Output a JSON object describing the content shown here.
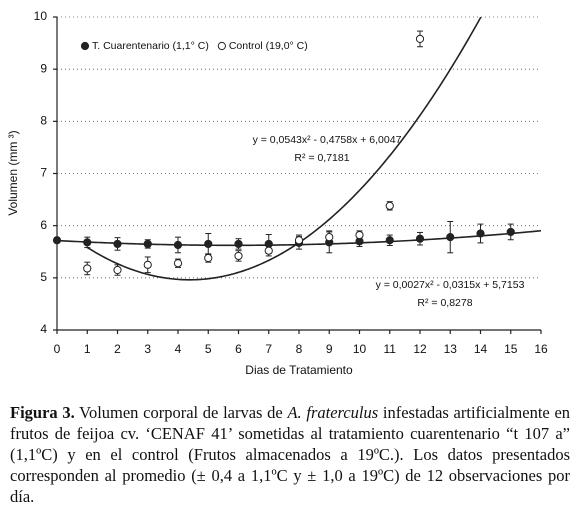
{
  "chart_data": {
    "type": "scatter",
    "y_label": "Volumen (mm ³)",
    "x_label": "Dias de Tratamiento",
    "xlim": [
      0,
      16
    ],
    "xticks": [
      0,
      1,
      2,
      3,
      4,
      5,
      6,
      7,
      8,
      9,
      10,
      11,
      12,
      13,
      14,
      15,
      16
    ],
    "ylim": [
      4,
      10
    ],
    "yticks": [
      4,
      5,
      6,
      7,
      8,
      9,
      10
    ],
    "grid": true,
    "legend": "top-left",
    "series": [
      {
        "name": "T. Cuarentenario (1,1° C)",
        "marker": "filled",
        "color": "#222222",
        "x": [
          0,
          1,
          2,
          3,
          4,
          5,
          6,
          7,
          8,
          9,
          10,
          11,
          12,
          13,
          14,
          15
        ],
        "values": [
          5.72,
          5.68,
          5.65,
          5.65,
          5.63,
          5.65,
          5.65,
          5.65,
          5.67,
          5.68,
          5.7,
          5.72,
          5.75,
          5.78,
          5.85,
          5.88
        ],
        "errors": [
          0.05,
          0.1,
          0.12,
          0.08,
          0.15,
          0.2,
          0.1,
          0.18,
          0.12,
          0.2,
          0.1,
          0.1,
          0.12,
          0.3,
          0.18,
          0.15
        ],
        "fit": {
          "coefficients": [
            {
              "value": 0.0027,
              "label": "0,0027"
            },
            {
              "value": -0.0315,
              "label": "0,0315"
            },
            {
              "value": 5.7153,
              "label": "5,7153"
            }
          ],
          "equation": "y = 0,0027x² - 0,0315x + 5,7153",
          "r2": "R² = 0,8278"
        }
      },
      {
        "name": "Control (19,0° C)",
        "marker": "open",
        "color": "#222222",
        "x": [
          1,
          2,
          3,
          4,
          5,
          6,
          7,
          8,
          9,
          10,
          11,
          12
        ],
        "values": [
          5.18,
          5.15,
          5.25,
          5.28,
          5.38,
          5.42,
          5.52,
          5.72,
          5.78,
          5.82,
          6.38,
          9.58
        ],
        "errors": [
          0.12,
          0.1,
          0.15,
          0.08,
          0.08,
          0.1,
          0.1,
          0.1,
          0.12,
          0.08,
          0.08,
          0.15
        ],
        "fit": {
          "coefficients": [
            {
              "value": 0.0543,
              "label": "0,0543"
            },
            {
              "value": -0.4758,
              "label": "0,4758"
            },
            {
              "value": 6.0047,
              "label": "6,0047"
            }
          ],
          "equation": "y = 0,0543x² - 0,4758x + 6,0047",
          "r2": "R² = 0,7181"
        }
      }
    ]
  },
  "caption": {
    "label": "Figura 3.",
    "text_1": " Volumen corporal de larvas de ",
    "species": "A. fraterculus",
    "text_2": " infestadas artificialmente en frutos de feijoa cv. ‘CENAF 41’ sometidas al tratamiento cuarentenario “t 107 a” (1,1ºC) y en el control (Frutos almacenados a 19ºC.).  Los datos presentados corresponden al promedio (± 0,4 a 1,1ºC  y ± 1,0 a 19ºC) de 12 observaciones por día."
  }
}
